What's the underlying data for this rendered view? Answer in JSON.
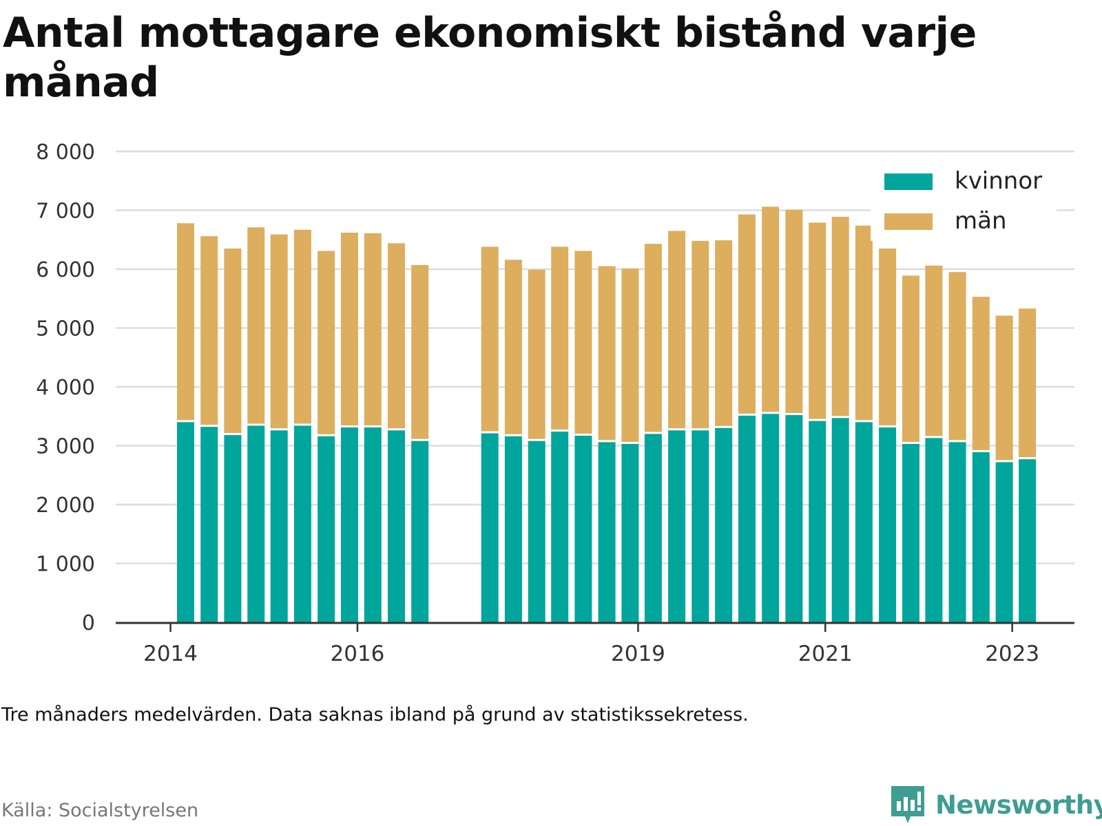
{
  "title": "Antal mottagare ekonomiskt bistånd varje månad",
  "note": "Tre månaders medelvärden. Data saknas ibland på grund av statistikssekretess.",
  "source": "Källa: Socialstyrelsen",
  "brand": {
    "name": "Newsworthy",
    "icon": "newsworthy-logo-icon"
  },
  "colors": {
    "kvinnor": "#00a59b",
    "man": "#dcae5e",
    "grid": "#dddddd",
    "axis": "#333333"
  },
  "chart_data": {
    "type": "bar",
    "stacked": true,
    "title": "Antal mottagare ekonomiskt bistånd varje månad",
    "xlabel": "",
    "ylabel": "",
    "ylim": [
      0,
      8000
    ],
    "y_ticks": [
      "0",
      "1 000",
      "2 000",
      "3 000",
      "4 000",
      "5 000",
      "6 000",
      "7 000",
      "8 000"
    ],
    "y_tick_values": [
      0,
      1000,
      2000,
      3000,
      4000,
      5000,
      6000,
      7000,
      8000
    ],
    "x_ticks": [
      "2014",
      "2016",
      "2019",
      "2021",
      "2023"
    ],
    "x_tick_dates": [
      "2014-01-01",
      "2016-01-01",
      "2019-01-01",
      "2021-01-01",
      "2023-01-01"
    ],
    "x_range": [
      "2013-06-01",
      "2023-09-01"
    ],
    "grid": true,
    "legend": {
      "position": "top-right"
    },
    "dates": [
      "2014-03",
      "2014-06",
      "2014-09",
      "2014-12",
      "2015-03",
      "2015-06",
      "2015-09",
      "2015-12",
      "2016-03",
      "2016-06",
      "2016-09",
      "2017-06",
      "2017-09",
      "2017-12",
      "2018-03",
      "2018-06",
      "2018-09",
      "2018-12",
      "2019-03",
      "2019-06",
      "2019-09",
      "2019-12",
      "2020-03",
      "2020-06",
      "2020-09",
      "2020-12",
      "2021-03",
      "2021-06",
      "2021-09",
      "2021-12",
      "2022-03",
      "2022-06",
      "2022-09",
      "2022-12",
      "2023-03"
    ],
    "series": [
      {
        "name": "kvinnor",
        "color": "#00a59b",
        "values": [
          3400,
          3320,
          3180,
          3340,
          3260,
          3340,
          3160,
          3310,
          3310,
          3260,
          3080,
          3210,
          3160,
          3080,
          3240,
          3170,
          3060,
          3030,
          3200,
          3260,
          3260,
          3300,
          3510,
          3540,
          3520,
          3420,
          3470,
          3400,
          3310,
          3030,
          3130,
          3060,
          2890,
          2720,
          2770
        ]
      },
      {
        "name": "män",
        "color": "#dcae5e",
        "values": [
          3380,
          3240,
          3170,
          3370,
          3330,
          3330,
          3150,
          3310,
          3300,
          3180,
          2990,
          3170,
          3000,
          2910,
          3140,
          3140,
          2990,
          2980,
          3230,
          3390,
          3220,
          3190,
          3420,
          3520,
          3490,
          3370,
          3420,
          3340,
          3040,
          2860,
          2930,
          2890,
          2640,
          2490,
          2560
        ]
      }
    ]
  }
}
